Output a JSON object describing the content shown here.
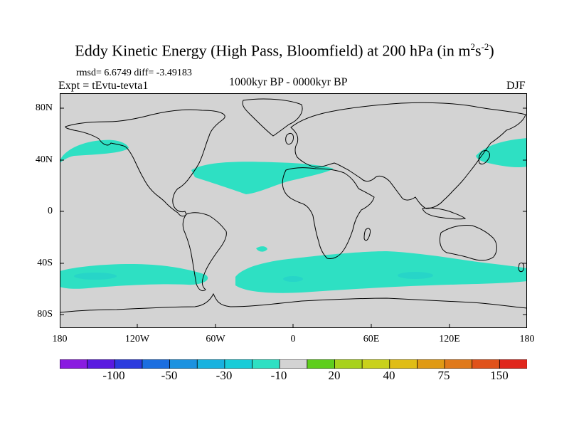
{
  "title": {
    "main": "Eddy Kinetic Energy (High Pass, Bloomfield) at 200 hPa (in m",
    "sup1": "2",
    "mid": "s",
    "sup2": "-2",
    "close": ")"
  },
  "stats": "rmsd= 6.6749 diff= -3.49183",
  "experiment": "Expt = tEvtu-tevta1",
  "period": "1000kyr BP - 0000kyr BP",
  "season": "DJF",
  "lat_labels": [
    "80N",
    "40N",
    "0",
    "40S",
    "80S"
  ],
  "lon_labels": [
    "180",
    "120W",
    "60W",
    "0",
    "60E",
    "120E",
    "180"
  ],
  "colors": {
    "land_ocean": "#d3d3d3",
    "anomaly_band": "#2ee0c3",
    "anomaly_core": "#2ad8c8",
    "coastline": "#000000"
  },
  "colorbar": {
    "colors": [
      "#8a1be0",
      "#5a1ae0",
      "#2c3bde",
      "#1b6ee0",
      "#1b92e0",
      "#18b2df",
      "#18ccd8",
      "#2ee0c3",
      "#d3d3d3",
      "#5fce1d",
      "#a8d21d",
      "#c9d11c",
      "#e0bd16",
      "#e09a14",
      "#e0791a",
      "#e0521a",
      "#e0261c"
    ],
    "labels": [
      "-100",
      "-50",
      "-30",
      "-10",
      "20",
      "40",
      "75",
      "150"
    ]
  }
}
